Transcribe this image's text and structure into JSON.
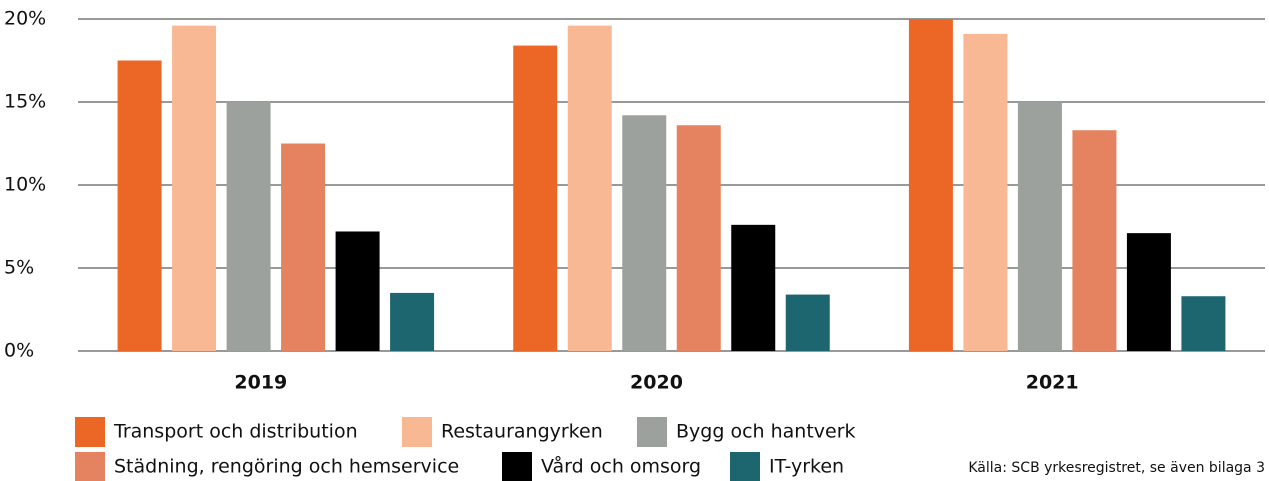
{
  "chart_data": {
    "type": "bar",
    "categories": [
      "2019",
      "2020",
      "2021"
    ],
    "series": [
      {
        "name": "Transport och distribution",
        "color": "#ec6726",
        "values": [
          17.5,
          18.4,
          20.0
        ]
      },
      {
        "name": "Restaurangyrken",
        "color": "#f7b893",
        "values": [
          19.6,
          19.6,
          19.1
        ]
      },
      {
        "name": "Bygg och hantverk",
        "color": "#9ca19e",
        "values": [
          15.0,
          14.2,
          15.0
        ]
      },
      {
        "name": "Städning, rengöring och hemservice",
        "color": "#e5825f",
        "values": [
          12.5,
          13.6,
          13.3
        ]
      },
      {
        "name": "Vård och omsorg",
        "color": "#000000",
        "values": [
          7.2,
          7.6,
          7.1
        ]
      },
      {
        "name": "IT-yrken",
        "color": "#1d6670",
        "values": [
          3.5,
          3.4,
          3.3
        ]
      }
    ],
    "ylim": [
      0,
      20
    ],
    "yticks": [
      {
        "value": 0,
        "label": "0%"
      },
      {
        "value": 5,
        "label": "5%"
      },
      {
        "value": 10,
        "label": "10%"
      },
      {
        "value": 15,
        "label": "15%"
      },
      {
        "value": 20,
        "label": "20%"
      }
    ],
    "grid": true,
    "source": "Källa: SCB yrkesregistret, se även bilaga 3"
  }
}
